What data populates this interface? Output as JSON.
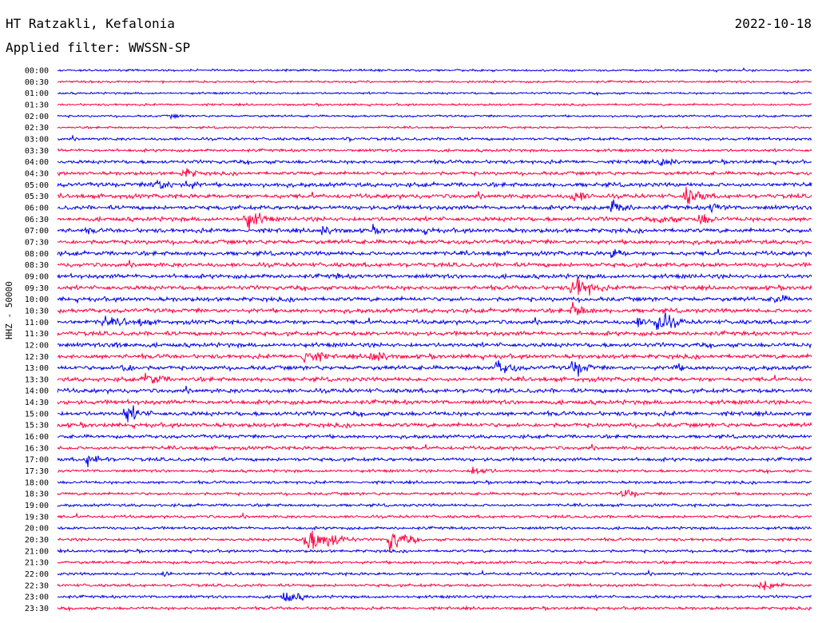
{
  "header": {
    "station": "HT Ratzakli, Kefalonia",
    "date": "2022-10-18",
    "filter": "Applied filter: WWSSN-SP",
    "channel": "HHZ - 50000"
  },
  "chart_data": {
    "type": "line",
    "title": "HT Ratzakli, Kefalonia",
    "ylabel": "HHZ - 50000",
    "colors": [
      "#0000e6",
      "#ff0040"
    ],
    "row_labels": [
      "00:00",
      "00:30",
      "01:00",
      "01:30",
      "02:00",
      "02:30",
      "03:00",
      "03:30",
      "04:00",
      "04:30",
      "05:00",
      "05:30",
      "06:00",
      "06:30",
      "07:00",
      "07:30",
      "08:00",
      "08:30",
      "09:00",
      "09:30",
      "10:00",
      "10:30",
      "11:00",
      "11:30",
      "12:00",
      "12:30",
      "13:00",
      "13:30",
      "14:00",
      "14:30",
      "15:00",
      "15:30",
      "16:00",
      "16:30",
      "17:00",
      "17:30",
      "18:00",
      "18:30",
      "19:00",
      "19:30",
      "20:00",
      "20:30",
      "21:00",
      "21:30",
      "22:00",
      "22:30",
      "23:00",
      "23:30"
    ],
    "x_unit": "minutes within 30-min row",
    "noise_level": [
      1.5,
      1.5,
      1.5,
      1.5,
      1.5,
      1.5,
      2,
      2,
      2.5,
      2.5,
      3,
      3,
      3,
      3,
      3,
      3,
      3,
      3,
      3,
      3,
      3,
      3,
      3,
      3,
      3,
      3,
      3,
      3,
      3,
      3,
      3,
      3,
      2.5,
      2.5,
      2.5,
      2,
      2,
      2,
      2,
      2,
      2,
      2,
      2,
      2,
      2,
      2,
      2,
      2
    ],
    "events": [
      {
        "row": 4,
        "minute": 4.5,
        "amplitude": 4
      },
      {
        "row": 6,
        "minute": 11.5,
        "amplitude": 4
      },
      {
        "row": 8,
        "minute": 24,
        "amplitude": 10
      },
      {
        "row": 9,
        "minute": 5,
        "amplitude": 10
      },
      {
        "row": 10,
        "minute": 3.8,
        "amplitude": 14
      },
      {
        "row": 10,
        "minute": 5,
        "amplitude": 10
      },
      {
        "row": 11,
        "minute": 20.5,
        "amplitude": 12
      },
      {
        "row": 11,
        "minute": 25,
        "amplitude": 16
      },
      {
        "row": 12,
        "minute": 22,
        "amplitude": 14
      },
      {
        "row": 12,
        "minute": 26,
        "amplitude": 10
      },
      {
        "row": 13,
        "minute": 7.5,
        "amplitude": 18
      },
      {
        "row": 13,
        "minute": 24,
        "amplitude": 10
      },
      {
        "row": 13,
        "minute": 25.5,
        "amplitude": 12
      },
      {
        "row": 14,
        "minute": 1.2,
        "amplitude": 6
      },
      {
        "row": 14,
        "minute": 10.5,
        "amplitude": 10
      },
      {
        "row": 14,
        "minute": 12.5,
        "amplitude": 8
      },
      {
        "row": 14,
        "minute": 14.5,
        "amplitude": 8
      },
      {
        "row": 16,
        "minute": 22,
        "amplitude": 10
      },
      {
        "row": 18,
        "minute": 11,
        "amplitude": 6
      },
      {
        "row": 19,
        "minute": 20.5,
        "amplitude": 24
      },
      {
        "row": 20,
        "minute": 28.5,
        "amplitude": 10
      },
      {
        "row": 21,
        "minute": 20.5,
        "amplitude": 14
      },
      {
        "row": 22,
        "minute": 1.8,
        "amplitude": 10
      },
      {
        "row": 22,
        "minute": 2.5,
        "amplitude": 8
      },
      {
        "row": 22,
        "minute": 3.3,
        "amplitude": 8
      },
      {
        "row": 22,
        "minute": 23,
        "amplitude": 10
      },
      {
        "row": 22,
        "minute": 23.8,
        "amplitude": 22
      },
      {
        "row": 24,
        "minute": 2.3,
        "amplitude": 10
      },
      {
        "row": 25,
        "minute": 9.8,
        "amplitude": 16
      },
      {
        "row": 25,
        "minute": 12.5,
        "amplitude": 14
      },
      {
        "row": 26,
        "minute": 2.5,
        "amplitude": 10
      },
      {
        "row": 26,
        "minute": 17.5,
        "amplitude": 14
      },
      {
        "row": 26,
        "minute": 20.5,
        "amplitude": 14
      },
      {
        "row": 26,
        "minute": 24.5,
        "amplitude": 8
      },
      {
        "row": 27,
        "minute": 3.5,
        "amplitude": 14
      },
      {
        "row": 30,
        "minute": 2.7,
        "amplitude": 16
      },
      {
        "row": 34,
        "minute": 1.2,
        "amplitude": 12
      },
      {
        "row": 35,
        "minute": 16.5,
        "amplitude": 10
      },
      {
        "row": 37,
        "minute": 22.5,
        "amplitude": 8
      },
      {
        "row": 41,
        "minute": 9.8,
        "amplitude": 26
      },
      {
        "row": 41,
        "minute": 10.6,
        "amplitude": 18
      },
      {
        "row": 41,
        "minute": 13.2,
        "amplitude": 20
      },
      {
        "row": 44,
        "minute": 4.2,
        "amplitude": 6
      },
      {
        "row": 45,
        "minute": 28,
        "amplitude": 10
      },
      {
        "row": 46,
        "minute": 9,
        "amplitude": 12
      }
    ]
  }
}
